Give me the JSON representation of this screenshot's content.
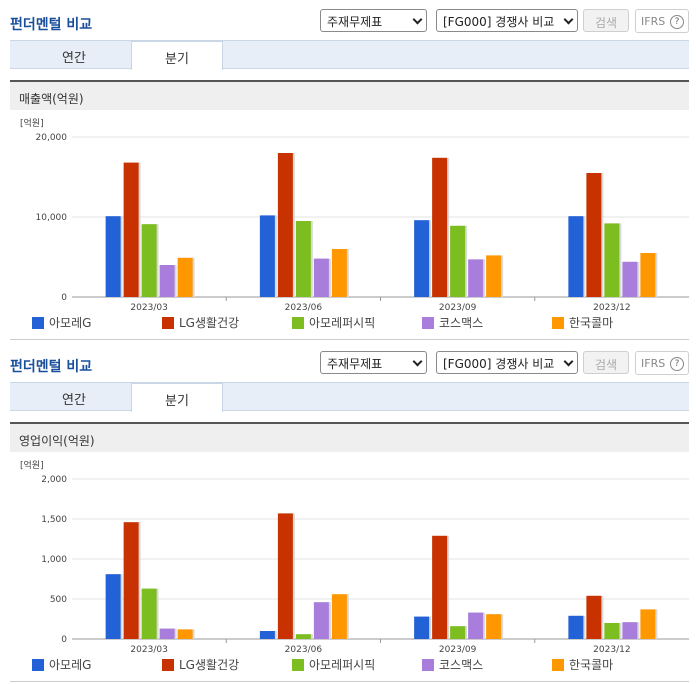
{
  "toolbar": {
    "title": "펀더멘털 비교",
    "select_type": "주재무제표",
    "select_group": "[FG000] 경쟁사 비교",
    "search_label": "검색",
    "ifrs_label": "IFRS",
    "help": "?"
  },
  "tabs": [
    "연간",
    "분기"
  ],
  "colors": [
    "#2262d6",
    "#c83200",
    "#7cbd1f",
    "#a97ddb",
    "#ff9800"
  ],
  "chart_data": [
    {
      "type": "bar",
      "title": "매출액(억원)",
      "unit_label": "[억원]",
      "categories": [
        "2023/03",
        "2023/06",
        "2023/09",
        "2023/12"
      ],
      "yticks": [
        "0",
        "10,000",
        "20,000"
      ],
      "ylim": [
        0,
        20000
      ],
      "series": [
        {
          "name": "아모레G",
          "values": [
            10100,
            10200,
            9600,
            10100
          ]
        },
        {
          "name": "LG생활건강",
          "values": [
            16800,
            18000,
            17400,
            15500
          ]
        },
        {
          "name": "아모레퍼시픽",
          "values": [
            9100,
            9500,
            8900,
            9200
          ]
        },
        {
          "name": "코스맥스",
          "values": [
            4000,
            4800,
            4700,
            4400
          ]
        },
        {
          "name": "한국콜마",
          "values": [
            4900,
            6000,
            5200,
            5500
          ]
        }
      ]
    },
    {
      "type": "bar",
      "title": "영업이익(억원)",
      "unit_label": "[억원]",
      "categories": [
        "2023/03",
        "2023/06",
        "2023/09",
        "2023/12"
      ],
      "yticks": [
        "0",
        "500",
        "1,000",
        "1,500",
        "2,000"
      ],
      "ylim": [
        0,
        2000
      ],
      "series": [
        {
          "name": "아모레G",
          "values": [
            810,
            100,
            280,
            290
          ]
        },
        {
          "name": "LG생활건강",
          "values": [
            1460,
            1570,
            1290,
            540
          ]
        },
        {
          "name": "아모레퍼시픽",
          "values": [
            630,
            60,
            160,
            200
          ]
        },
        {
          "name": "코스맥스",
          "values": [
            130,
            460,
            330,
            210
          ]
        },
        {
          "name": "한국콜마",
          "values": [
            120,
            560,
            310,
            370
          ]
        }
      ]
    }
  ]
}
